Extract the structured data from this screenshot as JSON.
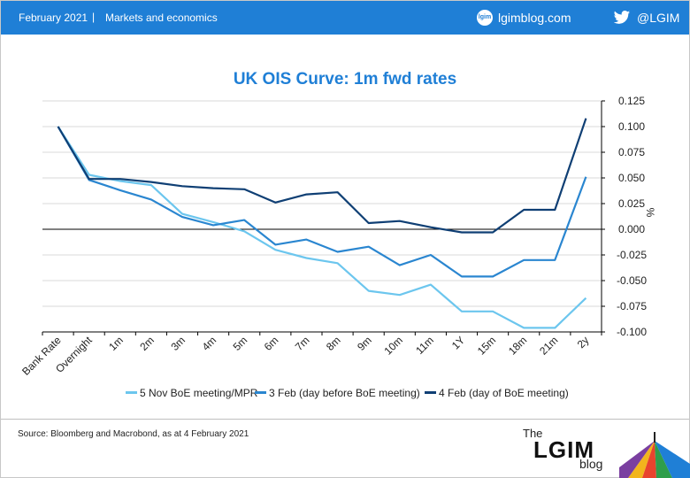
{
  "header": {
    "date": "February 2021",
    "separator": "|",
    "topic": "Markets and economics",
    "blog_icon_text": "lgim",
    "blog_url": "lgimblog.com",
    "twitter_icon": "twitter-bird-icon",
    "twitter_handle": "@LGIM"
  },
  "colors": {
    "header_bg": "#1f7fd6",
    "title": "#1f7fd6",
    "series": [
      "#6cc6ee",
      "#2a86d0",
      "#0f3f74"
    ]
  },
  "footer": {
    "source": "Source: Bloomberg and Macrobond, as at 4 February 2021",
    "logo_the": "The",
    "logo_lgim": "LGIM",
    "logo_blog": "blog"
  },
  "chart_data": {
    "type": "line",
    "title": "UK OIS Curve: 1m fwd rates",
    "ylabel": "%",
    "ylim": [
      -0.1,
      0.125
    ],
    "yticks": [
      0.125,
      0.1,
      0.075,
      0.05,
      0.025,
      0.0,
      -0.025,
      -0.05,
      -0.075,
      -0.1
    ],
    "ytick_labels": [
      "0.125",
      "0.100",
      "0.075",
      "0.050",
      "0.025",
      "0.000",
      "-0.025",
      "-0.050",
      "-0.075",
      "-0.100"
    ],
    "y_axis_position": "right",
    "grid": "horizontal",
    "legend_position": "bottom",
    "categories": [
      "Bank Rate",
      "Overnight",
      "1m",
      "2m",
      "3m",
      "4m",
      "5m",
      "6m",
      "7m",
      "8m",
      "9m",
      "10m",
      "11m",
      "1Y",
      "15m",
      "18m",
      "21m",
      "2y"
    ],
    "series": [
      {
        "name": "5 Nov BoE meeting/MPR",
        "values": [
          0.1,
          0.053,
          0.047,
          0.043,
          0.015,
          0.007,
          -0.002,
          -0.02,
          -0.028,
          -0.033,
          -0.06,
          -0.064,
          -0.054,
          -0.08,
          -0.08,
          -0.096,
          -0.096,
          -0.067
        ]
      },
      {
        "name": "3 Feb (day before BoE meeting)",
        "values": [
          0.1,
          0.048,
          0.038,
          0.029,
          0.012,
          0.004,
          0.009,
          -0.015,
          -0.01,
          -0.022,
          -0.017,
          -0.035,
          -0.025,
          -0.046,
          -0.046,
          -0.03,
          -0.03,
          0.051
        ]
      },
      {
        "name": "4 Feb (day of BoE meeting)",
        "values": [
          0.1,
          0.049,
          0.049,
          0.046,
          0.042,
          0.04,
          0.039,
          0.026,
          0.034,
          0.036,
          0.006,
          0.008,
          0.002,
          -0.003,
          -0.003,
          0.019,
          0.019,
          0.108
        ]
      }
    ]
  }
}
